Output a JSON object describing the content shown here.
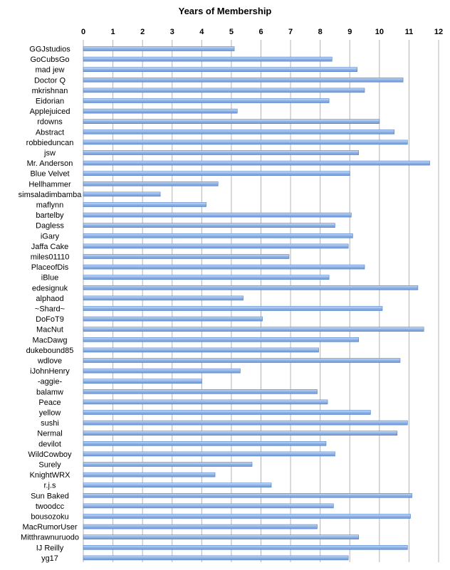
{
  "chart_data": {
    "type": "bar",
    "orientation": "horizontal",
    "title": "Years of Membership",
    "xlabel": "",
    "ylabel": "",
    "xlim": [
      0,
      12
    ],
    "x_ticks": [
      0,
      1,
      2,
      3,
      4,
      5,
      6,
      7,
      8,
      9,
      10,
      11,
      12
    ],
    "x_axis_position": "top",
    "grid": true,
    "bar_color": "#8fb3e6",
    "bar_edge_color": "#4f81c7",
    "categories": [
      "GGJstudios",
      "GoCubsGo",
      "mad jew",
      "Doctor Q",
      "mkrishnan",
      "Eidorian",
      "Applejuiced",
      "rdowns",
      "Abstract",
      "robbieduncan",
      "jsw",
      "Mr. Anderson",
      "Blue Velvet",
      "Hellhammer",
      "simsaladimbamba",
      "maflynn",
      "bartelby",
      "Dagless",
      "iGary",
      "Jaffa Cake",
      "miles01110",
      "PlaceofDis",
      "iBlue",
      "edesignuk",
      "alphaod",
      "~Shard~",
      "DoFoT9",
      "MacNut",
      "MacDawg",
      "dukebound85",
      "wdlove",
      "iJohnHenry",
      "-aggie-",
      "balamw",
      "Peace",
      "yellow",
      "sushi",
      "Nermal",
      "devilot",
      "WildCowboy",
      "Surely",
      "KnightWRX",
      "r.j.s",
      "Sun Baked",
      "twoodcc",
      "bousozoku",
      "MacRumorUser",
      "Mitthrawnuruodo",
      "IJ Reilly",
      "yg17"
    ],
    "values": [
      5.1,
      8.4,
      9.25,
      10.8,
      9.5,
      8.3,
      5.2,
      10.0,
      10.5,
      10.95,
      9.3,
      11.7,
      9.0,
      4.55,
      2.6,
      4.15,
      9.05,
      8.5,
      9.1,
      8.95,
      6.95,
      9.5,
      8.3,
      11.3,
      5.4,
      10.1,
      6.05,
      11.5,
      9.3,
      7.95,
      10.7,
      5.3,
      4.0,
      7.9,
      8.25,
      9.7,
      10.95,
      10.6,
      8.2,
      8.5,
      5.7,
      4.45,
      6.35,
      11.1,
      8.45,
      11.05,
      7.9,
      9.3,
      10.95,
      8.95
    ]
  }
}
